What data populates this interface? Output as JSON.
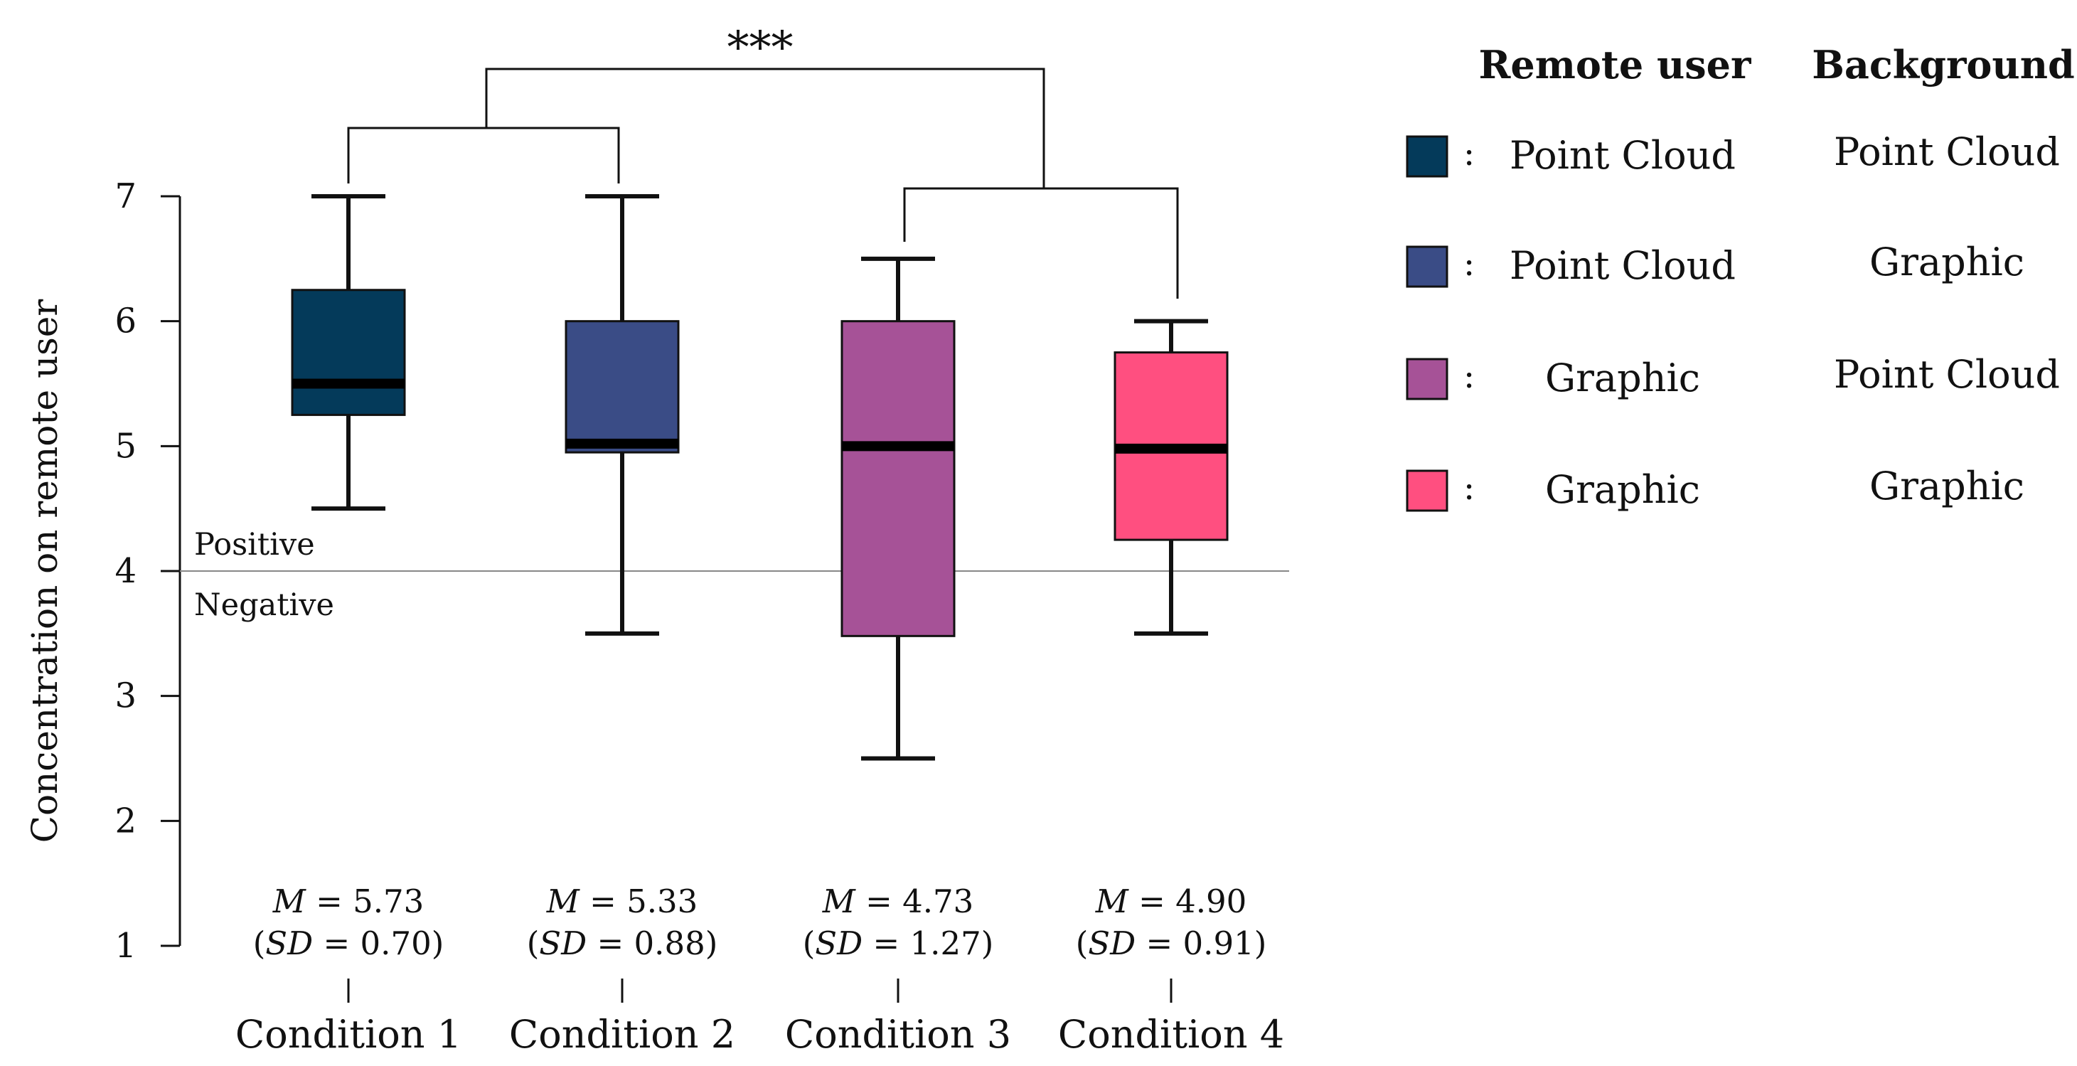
{
  "chart_data": {
    "type": "boxplot",
    "ylabel": "Concentration on remote user",
    "ylim": [
      1,
      7
    ],
    "yticks": [
      1,
      2,
      3,
      4,
      5,
      6,
      7
    ],
    "reference_line": {
      "value": 4,
      "label_above": "Positive",
      "label_below": "Negative"
    },
    "significance": {
      "label": "***",
      "between": [
        "Condition 1 & Condition 2",
        "Condition 3 & Condition 4"
      ]
    },
    "categories": [
      "Condition 1",
      "Condition 2",
      "Condition 3",
      "Condition 4"
    ],
    "boxes": [
      {
        "name": "Condition 1",
        "color": "#043A5A",
        "min": 4.5,
        "q1": 5.25,
        "median": 5.5,
        "q3": 6.25,
        "max": 7,
        "mean_label": "M = 5.73",
        "sd_label": "(SD = 0.70)",
        "m_prefix": "M",
        "m_value": " = 5.73",
        "sd_prefix": "SD",
        "sd_value": " = 0.70)"
      },
      {
        "name": "Condition 2",
        "color": "#3A4C86",
        "min": 3.5,
        "q1": 4.95,
        "median": 5.02,
        "q3": 6,
        "max": 7,
        "mean_label": "M = 5.33",
        "sd_label": "(SD = 0.88)",
        "m_prefix": "M",
        "m_value": " = 5.33",
        "sd_prefix": "SD",
        "sd_value": " = 0.88)"
      },
      {
        "name": "Condition 3",
        "color": "#A65297",
        "min": 2.5,
        "q1": 3.48,
        "median": 5,
        "q3": 6,
        "max": 6.5,
        "mean_label": "M = 4.73",
        "sd_label": "(SD = 1.27)",
        "m_prefix": "M",
        "m_value": " = 4.73",
        "sd_prefix": "SD",
        "sd_value": " = 1.27)"
      },
      {
        "name": "Condition 4",
        "color": "#FF4F80",
        "min": 3.5,
        "q1": 4.25,
        "median": 4.98,
        "q3": 5.75,
        "max": 6,
        "mean_label": "M = 4.90",
        "sd_label": "(SD = 0.91)",
        "m_prefix": "M",
        "m_value": " = 4.90",
        "sd_prefix": "SD",
        "sd_value": " = 0.91)"
      }
    ],
    "legend": {
      "headers": [
        "Remote user",
        "Background"
      ],
      "separator": ":",
      "rows": [
        {
          "color": "#043A5A",
          "remote_user": "Point Cloud",
          "background": "Point Cloud"
        },
        {
          "color": "#3A4C86",
          "remote_user": "Point Cloud",
          "background": "Graphic"
        },
        {
          "color": "#A65297",
          "remote_user": "Graphic",
          "background": "Point Cloud"
        },
        {
          "color": "#FF4F80",
          "remote_user": "Graphic",
          "background": "Graphic"
        }
      ]
    }
  }
}
